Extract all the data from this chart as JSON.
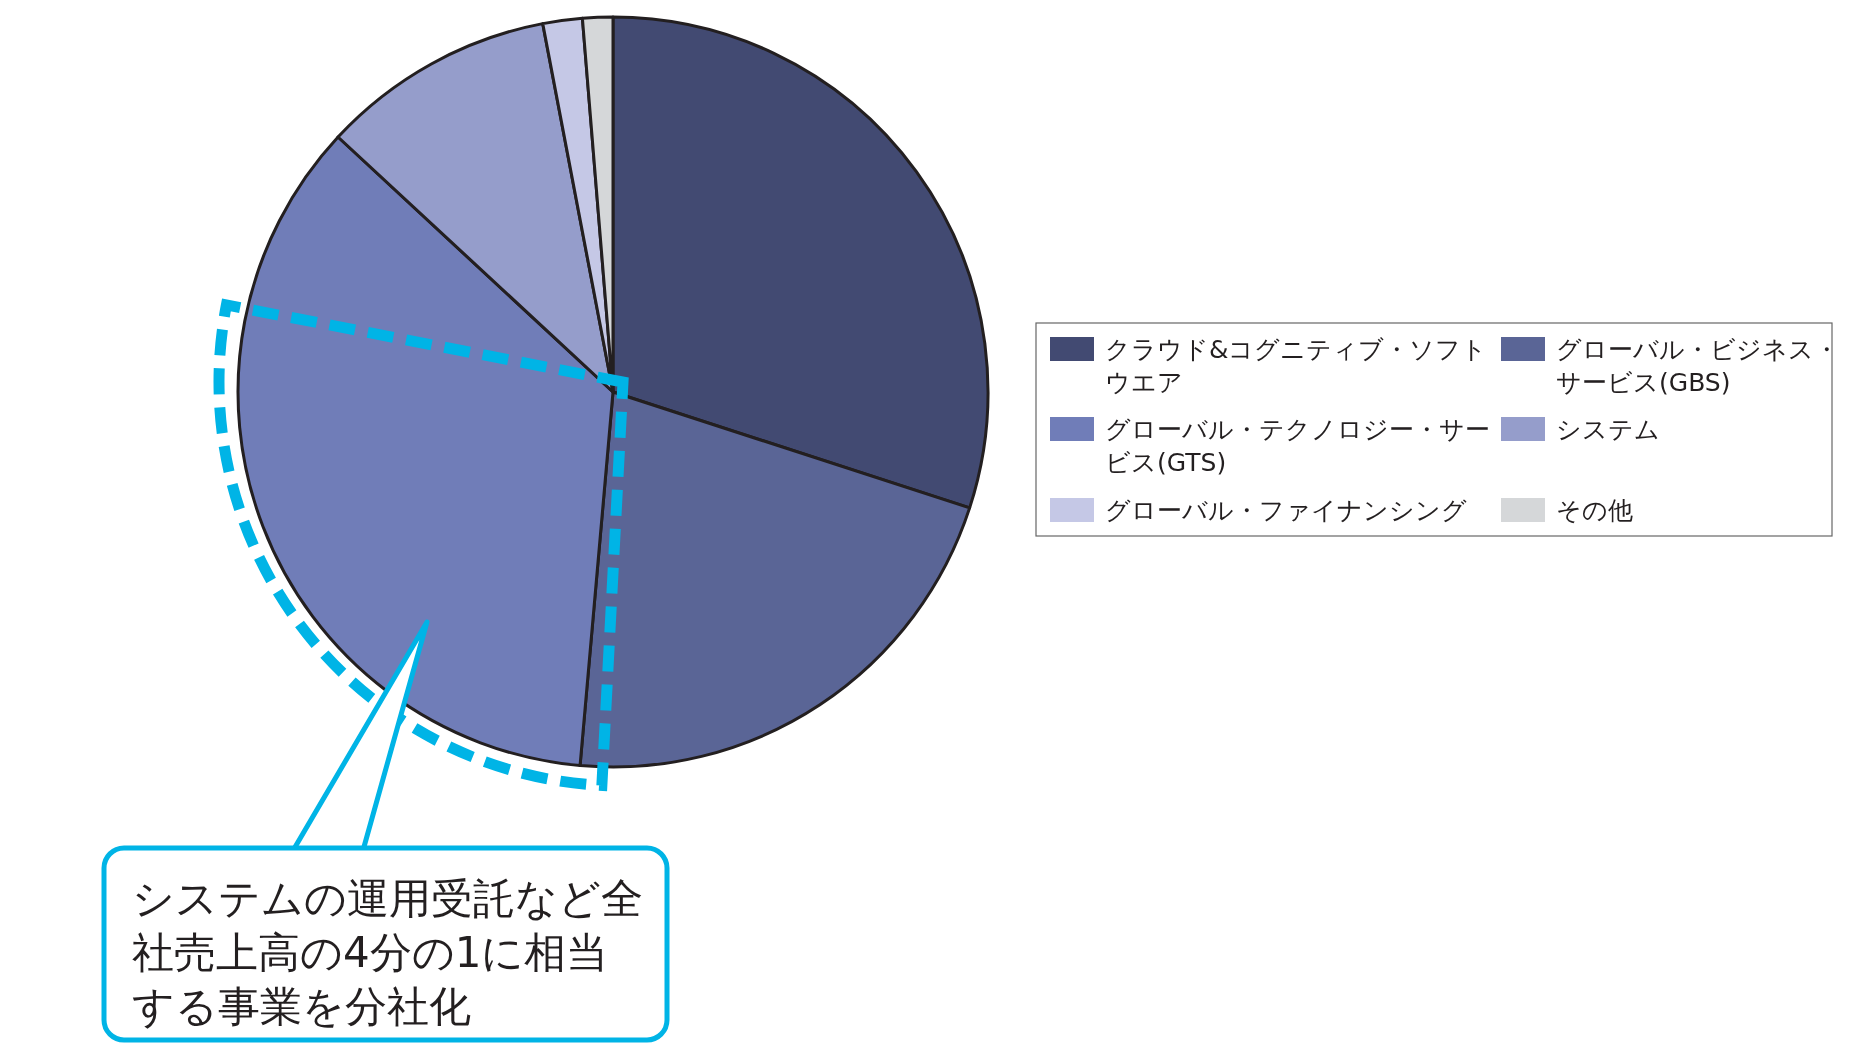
{
  "chart_data": {
    "type": "pie",
    "categories": [
      "クラウド&コグニティブ・ソフトウエア",
      "グローバル・ビジネス・サービス(GBS)",
      "グローバル・テクノロジー・サービス(GTS)",
      "システム",
      "グローバル・ファイナンシング",
      "その他"
    ],
    "values": [
      30.0,
      21.4,
      35.5,
      10.1,
      1.7,
      1.3
    ],
    "colors": [
      "#424a72",
      "#5a6596",
      "#707db8",
      "#959dcb",
      "#c5c8e6",
      "#d5d7d9"
    ],
    "legend": "right",
    "annotations": [
      "システムの運用受託など全社売上高の4分の1に相当する事業を分社化"
    ]
  }
}
